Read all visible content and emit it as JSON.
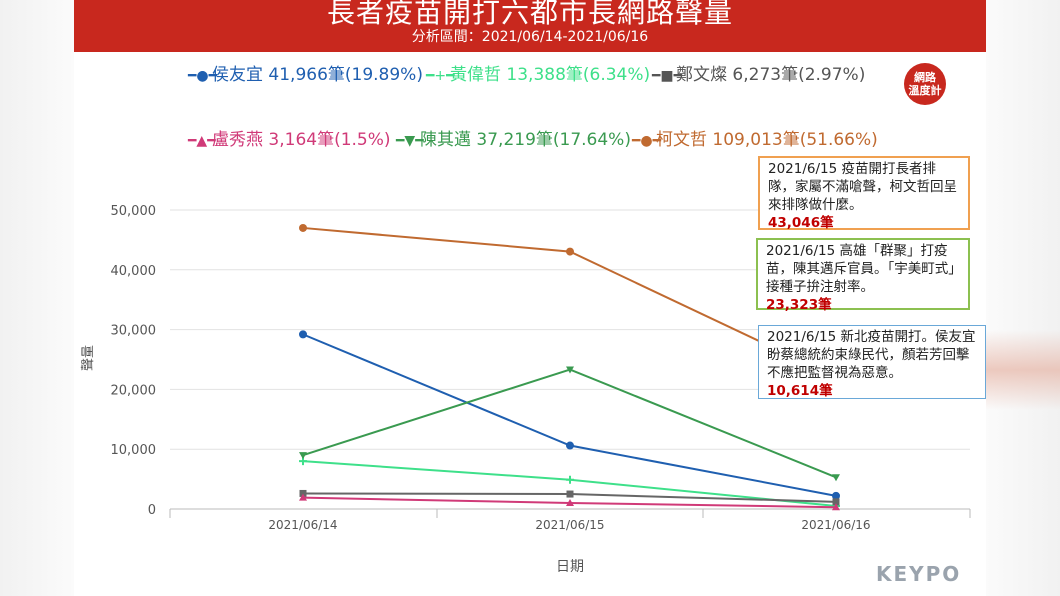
{
  "header": {
    "title": "長者疫苗開打六都市長網路聲量",
    "subtitle": "分析區間：2021/06/14-2021/06/16"
  },
  "badge": {
    "line1": "網路",
    "line2": "溫度計"
  },
  "brand": {
    "logo_text": "KEYPO"
  },
  "annotations": [
    {
      "text": "2021/6/15 疫苗開打長者排隊，家屬不滿嗆聲，柯文哲回呈來排隊做什麼。",
      "value": "43,046筆",
      "border": "#f0a050"
    },
    {
      "text": "2021/6/15 高雄「群聚」打疫苗，陳其邁斥官員。「宇美町式」接種子拚注射率。",
      "value": "23,323筆",
      "border": "#8cc050"
    },
    {
      "text": "2021/6/15 新北疫苗開打。侯友宜盼蔡總統約束綠民代，顏若芳回擊不應把監督視為惡意。",
      "value": "10,614筆",
      "border": "#6aa8d8"
    }
  ],
  "chart_data": {
    "type": "line",
    "title": "長者疫苗開打六都市長網路聲量",
    "xlabel": "日期",
    "ylabel": "聲量",
    "categories": [
      "2021/06/14",
      "2021/06/15",
      "2021/06/16"
    ],
    "ylim": [
      0,
      50000
    ],
    "yticks": [
      0,
      10000,
      20000,
      30000,
      40000,
      50000
    ],
    "ytick_labels": [
      "0",
      "10,000",
      "20,000",
      "30,000",
      "40,000",
      "50,000"
    ],
    "grid": true,
    "legend_position": "top",
    "series": [
      {
        "name": "侯友宜",
        "legend_label": "侯友宜 41,966筆(19.89%)",
        "color": "#1f5fb0",
        "marker": "circle",
        "values": [
          29200,
          10614,
          2200
        ]
      },
      {
        "name": "黃偉哲",
        "legend_label": "黃偉哲 13,388筆(6.34%)",
        "color": "#3ee08a",
        "marker": "plus",
        "values": [
          8000,
          4900,
          500
        ]
      },
      {
        "name": "鄭文燦",
        "legend_label": "鄭文燦 6,273筆(2.97%)",
        "color": "#666666",
        "marker": "square",
        "values": [
          2600,
          2500,
          1200
        ]
      },
      {
        "name": "盧秀燕",
        "legend_label": "盧秀燕 3,164筆(1.5%)",
        "color": "#d03a78",
        "marker": "triangle-up",
        "values": [
          1900,
          1000,
          300
        ]
      },
      {
        "name": "陳其邁",
        "legend_label": "陳其邁 37,219筆(17.64%)",
        "color": "#3a9a50",
        "marker": "triangle-down",
        "values": [
          9000,
          23323,
          5300
        ]
      },
      {
        "name": "柯文哲",
        "legend_label": "柯文哲 109,013筆(51.66%)",
        "color": "#c06a30",
        "marker": "circle",
        "values": [
          47000,
          43046,
          22000
        ]
      }
    ]
  }
}
